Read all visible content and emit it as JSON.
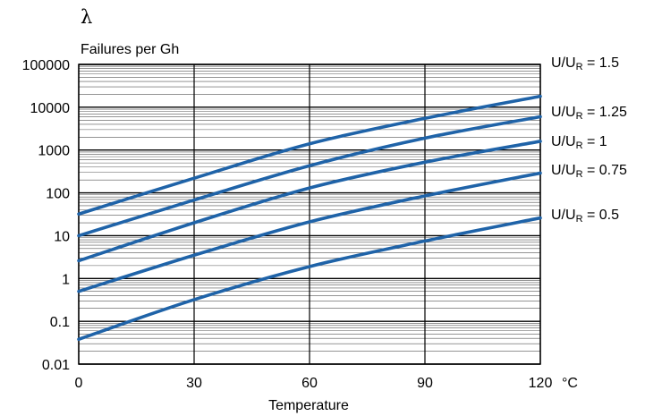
{
  "chart_data": {
    "type": "line",
    "y_symbol": "λ",
    "ylabel": "Failures per Gh",
    "xlabel": "Temperature",
    "x_unit": "°C",
    "x_ticks": [
      0,
      30,
      60,
      90,
      120
    ],
    "xlim": [
      0,
      120
    ],
    "y_scale": "log",
    "ylim": [
      0.01,
      100000
    ],
    "y_ticks": [
      "0.01",
      "0.1",
      "1",
      "10",
      "100",
      "1000",
      "10000",
      "100000"
    ],
    "grid": true,
    "series": [
      {
        "name": "U/U",
        "sub": "R",
        "ratio": "1.5",
        "x": [
          0,
          30,
          60,
          90,
          120
        ],
        "y": [
          32,
          220,
          1400,
          5500,
          18000
        ]
      },
      {
        "name": "U/U",
        "sub": "R",
        "ratio": "1.25",
        "x": [
          0,
          30,
          60,
          90,
          120
        ],
        "y": [
          10,
          68,
          430,
          1900,
          6000
        ]
      },
      {
        "name": "U/U",
        "sub": "R",
        "ratio": "1",
        "x": [
          0,
          30,
          60,
          90,
          120
        ],
        "y": [
          2.6,
          20,
          130,
          520,
          1600
        ]
      },
      {
        "name": "U/U",
        "sub": "R",
        "ratio": "0.75",
        "x": [
          0,
          30,
          60,
          90,
          120
        ],
        "y": [
          0.5,
          3.5,
          21,
          85,
          290
        ]
      },
      {
        "name": "U/U",
        "sub": "R",
        "ratio": "0.5",
        "x": [
          0,
          30,
          60,
          90,
          120
        ],
        "y": [
          0.038,
          0.32,
          1.9,
          7.5,
          26
        ]
      }
    ],
    "line_color": "#1f63a8"
  }
}
